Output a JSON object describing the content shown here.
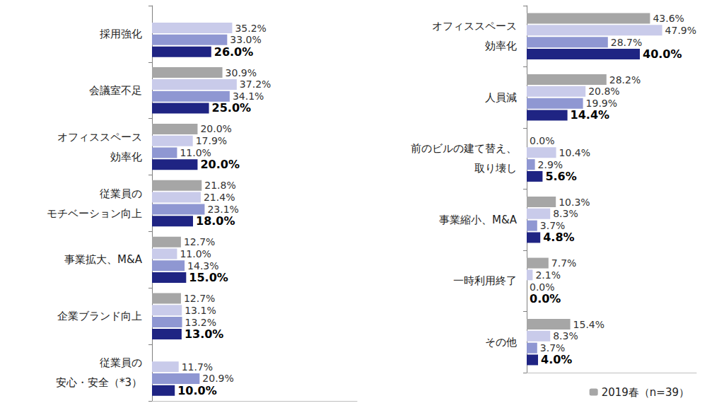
{
  "chart_data": [
    {
      "type": "bar",
      "orientation": "horizontal",
      "data_labels": true,
      "tick_labels": "y",
      "grid": false,
      "categories": [
        "採用強化",
        "会議室不足",
        "オフィススペース\n効率化",
        "従業員の\nモチベーション向上",
        "事業拡大、M&A",
        "企業ブランド向上",
        "従業員の\n安心・安全（*3）"
      ],
      "xlim": [
        0,
        90
      ],
      "series": [
        {
          "color": "#a6a6a6",
          "values": [
            null,
            30.9,
            20.0,
            21.8,
            12.7,
            12.7,
            null
          ],
          "value_labels": [
            null,
            "30.9%",
            "20.0%",
            "21.8%",
            "12.7%",
            "12.7%",
            null
          ]
        },
        {
          "color": "#c9cbea",
          "values": [
            35.2,
            37.2,
            17.9,
            21.4,
            11.0,
            13.1,
            11.7
          ],
          "value_labels": [
            "35.2%",
            "37.2%",
            "17.9%",
            "21.4%",
            "11.0%",
            "13.1%",
            "11.7%"
          ]
        },
        {
          "color": "#8f97d2",
          "values": [
            33.0,
            34.1,
            11.0,
            23.1,
            14.3,
            13.2,
            20.9
          ],
          "value_labels": [
            "33.0%",
            "34.1%",
            "11.0%",
            "23.1%",
            "14.3%",
            "13.2%",
            "20.9%"
          ]
        },
        {
          "color": "#1f2483",
          "values": [
            26.0,
            25.0,
            20.0,
            18.0,
            15.0,
            13.0,
            10.0
          ],
          "value_labels": [
            "26.0%",
            "25.0%",
            "20.0%",
            "18.0%",
            "15.0%",
            "13.0%",
            "10.0%"
          ]
        }
      ]
    },
    {
      "type": "bar",
      "orientation": "horizontal",
      "data_labels": true,
      "tick_labels": "y",
      "grid": false,
      "legend": "lower right",
      "categories": [
        "オフィススペース\n効率化",
        "人員減",
        "前のビルの建て替え、\n取り壊し",
        "事業縮小、M&A",
        "一時利用終了",
        "その他"
      ],
      "xlim": [
        0,
        60
      ],
      "series": [
        {
          "name": "2019春（n=39）",
          "color": "#a6a6a6",
          "values": [
            43.6,
            28.2,
            0.0,
            10.3,
            7.7,
            15.4
          ],
          "value_labels": [
            "43.6%",
            "28.2%",
            "0.0%",
            "10.3%",
            "7.7%",
            "15.4%"
          ]
        },
        {
          "color": "#c9cbea",
          "values": [
            47.9,
            20.8,
            10.4,
            8.3,
            2.1,
            8.3
          ],
          "value_labels": [
            "47.9%",
            "20.8%",
            "10.4%",
            "8.3%",
            "2.1%",
            "8.3%"
          ]
        },
        {
          "color": "#8f97d2",
          "values": [
            28.7,
            19.9,
            2.9,
            3.7,
            0.0,
            3.7
          ],
          "value_labels": [
            "28.7%",
            "19.9%",
            "2.9%",
            "3.7%",
            "0.0%",
            "3.7%"
          ]
        },
        {
          "color": "#1f2483",
          "values": [
            40.0,
            14.4,
            5.6,
            4.8,
            0.0,
            4.0
          ],
          "value_labels": [
            "40.0%",
            "14.4%",
            "5.6%",
            "4.8%",
            "0.0%",
            "4.0%"
          ]
        }
      ]
    }
  ]
}
